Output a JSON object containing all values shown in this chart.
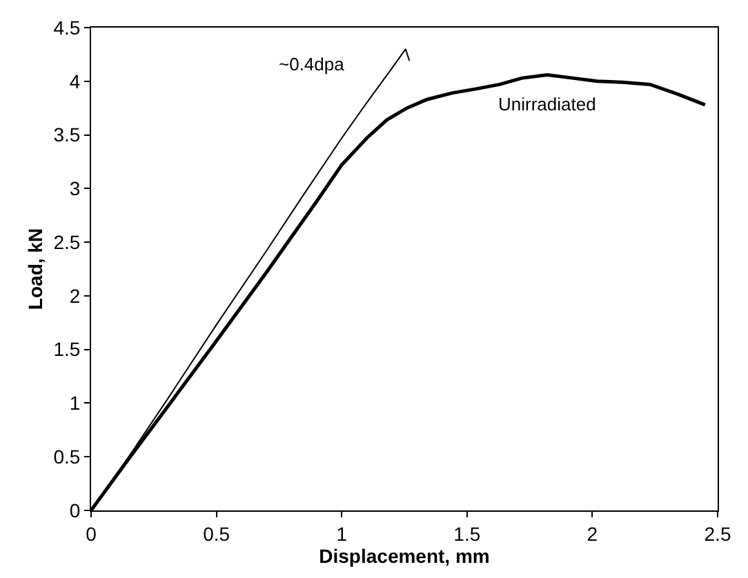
{
  "chart_data": {
    "type": "line",
    "xlabel": "Displacement, mm",
    "ylabel": "Load, kN",
    "xlim": [
      0,
      2.5
    ],
    "xticks": [
      0,
      0.5,
      1,
      1.5,
      2,
      2.5
    ],
    "ylim": [
      0,
      4.5
    ],
    "yticks": [
      0,
      0.5,
      1,
      1.5,
      2,
      2.5,
      3,
      3.5,
      4,
      4.5
    ],
    "legend": false,
    "marker": "none",
    "line_style": "solid",
    "series": [
      {
        "name": "~0.4dpa",
        "color": "#000000",
        "x": [
          0,
          0.15,
          0.3,
          0.5,
          0.7,
          0.85,
          1.0,
          1.1,
          1.2,
          1.255,
          1.27
        ],
        "values": [
          0,
          0.5,
          1.02,
          1.73,
          2.42,
          2.95,
          3.47,
          3.8,
          4.12,
          4.3,
          4.19
        ]
      },
      {
        "name": "Unirradiated",
        "color": "#000000",
        "x": [
          0,
          0.15,
          0.3,
          0.5,
          0.7,
          0.9,
          1.0,
          1.1,
          1.18,
          1.26,
          1.34,
          1.44,
          1.54,
          1.63,
          1.72,
          1.82,
          1.92,
          2.02,
          2.12,
          2.23,
          2.34,
          2.45
        ],
        "values": [
          0,
          0.48,
          0.95,
          1.58,
          2.22,
          2.88,
          3.22,
          3.47,
          3.64,
          3.75,
          3.83,
          3.89,
          3.93,
          3.97,
          4.03,
          4.06,
          4.03,
          4.0,
          3.99,
          3.97,
          3.88,
          3.78
        ]
      }
    ]
  }
}
